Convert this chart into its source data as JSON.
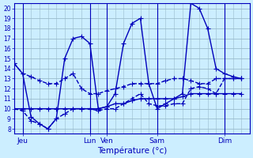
{
  "xlabel": "Température (°c)",
  "background_color": "#cceeff",
  "grid_color": "#99bbcc",
  "line_color": "#0000bb",
  "xlim": [
    0,
    28
  ],
  "ylim": [
    7.5,
    20.5
  ],
  "yticks": [
    8,
    9,
    10,
    11,
    12,
    13,
    14,
    15,
    16,
    17,
    18,
    19,
    20
  ],
  "xtick_positions": [
    1,
    9,
    11,
    17,
    25
  ],
  "xtick_labels": [
    "Jeu",
    "Lun",
    "Ven",
    "Sam",
    "Dim"
  ],
  "vline_positions": [
    1,
    9,
    11,
    17,
    25
  ],
  "minor_xticks_count": 28,
  "series": [
    {
      "x": [
        0,
        1,
        2,
        3,
        4,
        5,
        6,
        7,
        8,
        9,
        10,
        11,
        12,
        13,
        14,
        15,
        16,
        17,
        18,
        19,
        20,
        21,
        22,
        23,
        24,
        25,
        26,
        27
      ],
      "y": [
        14.5,
        13.5,
        13.2,
        12.8,
        12.5,
        12.5,
        13.0,
        13.5,
        12.0,
        11.5,
        11.5,
        11.8,
        12.0,
        12.2,
        12.5,
        12.5,
        12.5,
        12.5,
        12.8,
        13.0,
        13.0,
        12.8,
        12.5,
        12.5,
        13.0,
        13.0,
        13.0,
        13.0
      ],
      "style": "--",
      "marker": "+"
    },
    {
      "x": [
        0,
        1,
        2,
        3,
        4,
        5,
        6,
        7,
        8,
        9,
        10,
        11,
        12,
        13,
        14,
        15,
        16,
        17,
        18,
        19,
        20,
        21,
        22,
        23,
        24,
        25,
        26,
        27
      ],
      "y": [
        14.5,
        13.5,
        9.2,
        8.5,
        8.0,
        9.0,
        15.0,
        17.0,
        17.2,
        16.5,
        10.0,
        10.2,
        11.5,
        16.5,
        18.5,
        19.0,
        12.5,
        10.0,
        10.5,
        11.0,
        11.5,
        20.5,
        20.0,
        18.0,
        14.0,
        13.5,
        13.2,
        13.0
      ],
      "style": "-",
      "marker": "+"
    },
    {
      "x": [
        0,
        1,
        2,
        3,
        4,
        5,
        6,
        7,
        8,
        9,
        10,
        11,
        12,
        13,
        14,
        15,
        16,
        17,
        18,
        19,
        20,
        21,
        22,
        23,
        24,
        25,
        26,
        27
      ],
      "y": [
        10.0,
        10.0,
        10.0,
        10.0,
        10.0,
        10.0,
        10.0,
        10.0,
        10.0,
        10.0,
        10.0,
        10.2,
        10.5,
        10.5,
        10.8,
        11.0,
        11.0,
        11.0,
        11.0,
        11.0,
        11.2,
        11.5,
        11.5,
        11.5,
        11.5,
        11.5,
        11.5,
        11.5
      ],
      "style": "-",
      "marker": "+"
    },
    {
      "x": [
        0,
        1,
        2,
        3,
        4,
        5,
        6,
        7,
        8,
        9,
        10,
        11,
        12,
        13,
        14,
        15,
        16,
        17,
        18,
        19,
        20,
        21,
        22,
        23,
        24,
        25,
        26,
        27
      ],
      "y": [
        10.0,
        9.8,
        8.8,
        8.5,
        8.0,
        9.0,
        9.5,
        10.0,
        10.0,
        10.0,
        9.8,
        10.0,
        10.0,
        10.5,
        11.0,
        11.5,
        10.5,
        10.3,
        10.3,
        10.5,
        10.5,
        12.0,
        12.2,
        12.0,
        11.5,
        13.0,
        13.0,
        13.0
      ],
      "style": "--",
      "marker": "+"
    }
  ],
  "linewidth": 1.0,
  "markersize": 4.0
}
